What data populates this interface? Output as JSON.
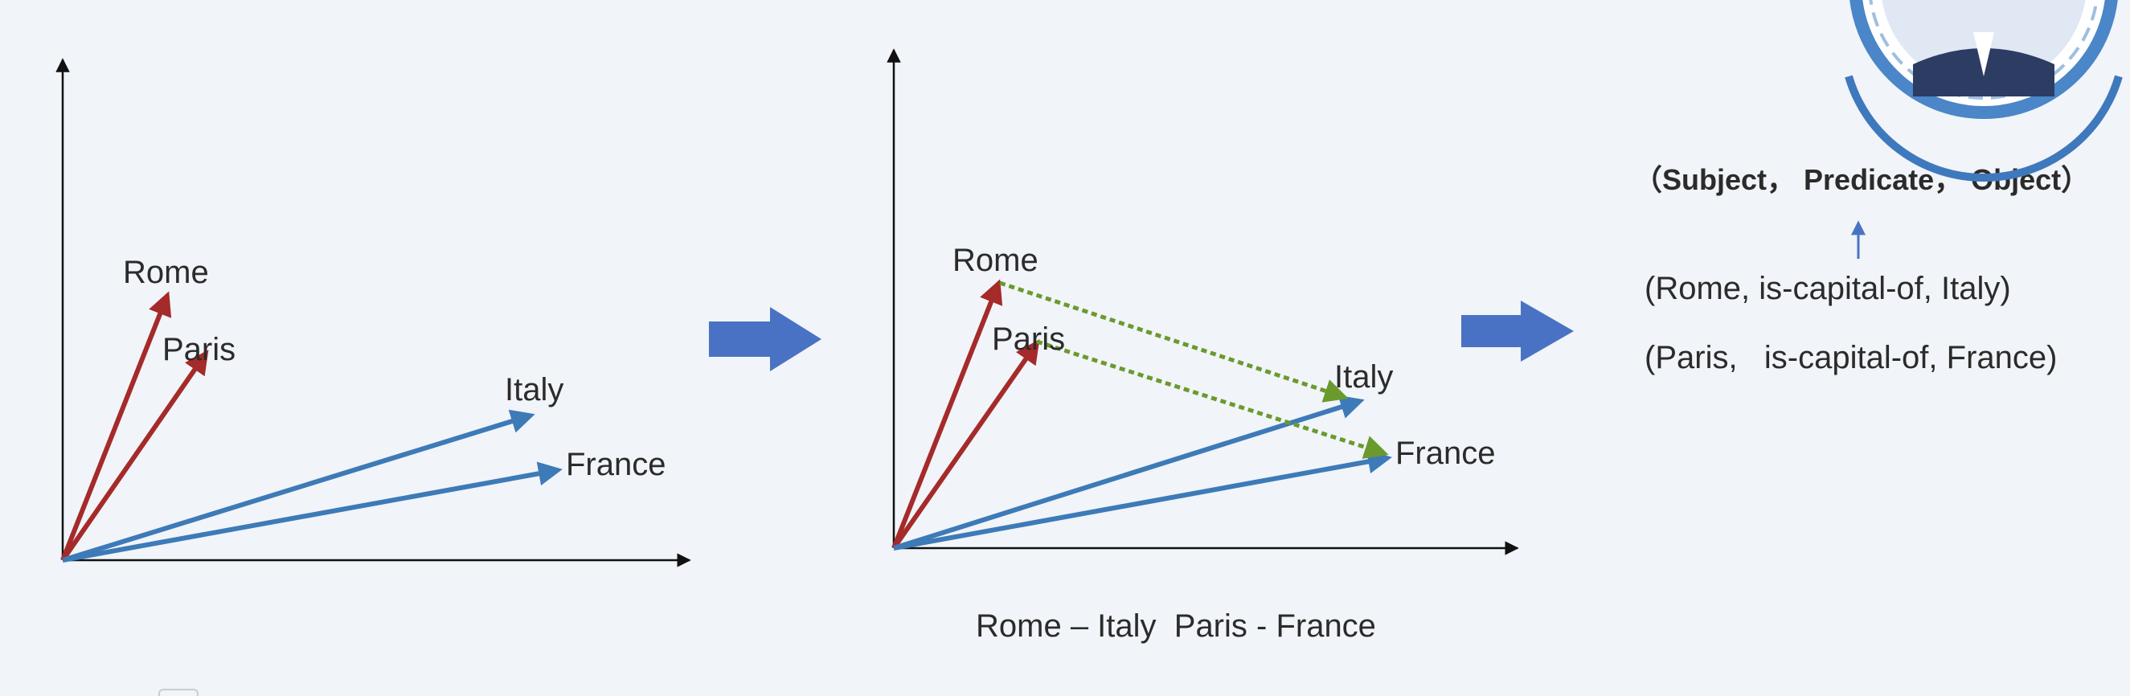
{
  "left_plot": {
    "labels": {
      "rome": "Rome",
      "paris": "Paris",
      "italy": "Italy",
      "france": "France"
    }
  },
  "middle_plot": {
    "labels": {
      "rome": "Rome",
      "paris": "Paris",
      "italy": "Italy",
      "france": "France"
    },
    "caption": "Rome – Italy  Paris - France"
  },
  "right_panel": {
    "triple_header": "（Subject， Predicate， Object）",
    "triples": [
      "(Rome, is-capital-of, Italy)",
      "(Paris,   is-capital-of, France)"
    ]
  },
  "colors": {
    "capital_vector": "#a52a2a",
    "country_vector": "#3d7ab8",
    "relation_vector": "#6a9a2e",
    "block_arrow": "#4a72c4",
    "small_arrow": "#4a72c4",
    "avatar_ring": "#4a86c8"
  }
}
